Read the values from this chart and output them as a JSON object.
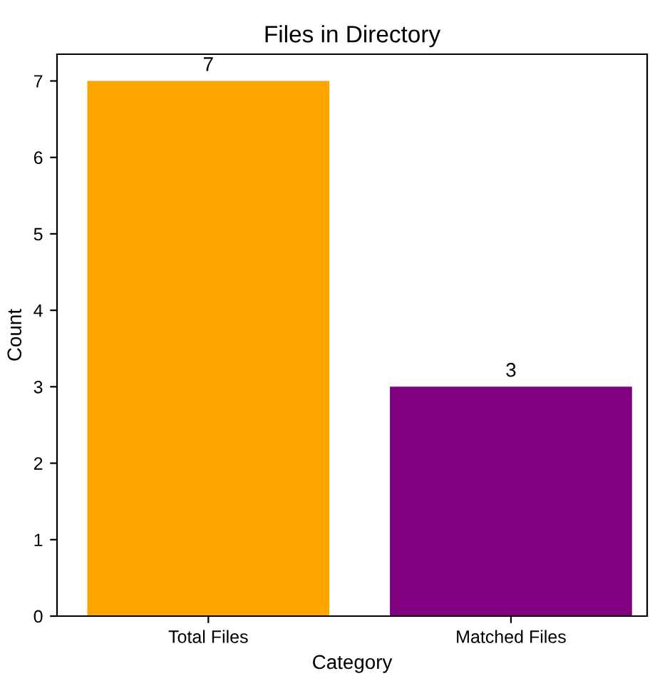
{
  "chart_data": {
    "type": "bar",
    "title": "Files in Directory",
    "xlabel": "Category",
    "ylabel": "Count",
    "categories": [
      "Total Files",
      "Matched Files"
    ],
    "values": [
      7,
      3
    ],
    "colors": [
      "#ffa500",
      "#800080"
    ],
    "ylim": [
      0,
      7.35
    ],
    "yticks": [
      0,
      1,
      2,
      3,
      4,
      5,
      6,
      7
    ],
    "data_labels": true,
    "grid": false,
    "legend": false
  }
}
